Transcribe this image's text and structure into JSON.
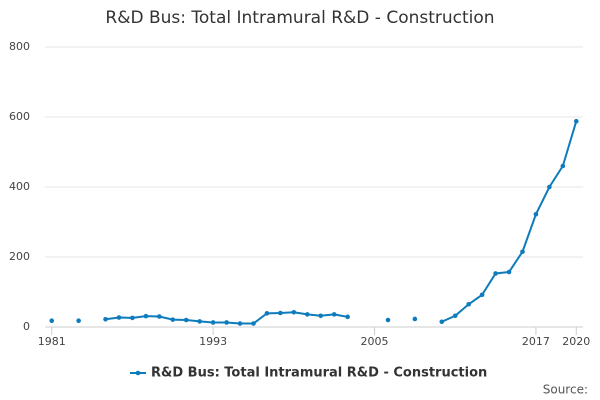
{
  "chart_data": {
    "type": "line",
    "title": "R&D Bus: Total Intramural R&D - Construction",
    "x": [
      1981,
      1982,
      1983,
      1984,
      1985,
      1986,
      1987,
      1988,
      1989,
      1990,
      1991,
      1992,
      1993,
      1994,
      1995,
      1996,
      1997,
      1998,
      1999,
      2000,
      2001,
      2002,
      2003,
      2004,
      2005,
      2006,
      2007,
      2008,
      2009,
      2010,
      2011,
      2012,
      2013,
      2014,
      2015,
      2016,
      2017,
      2018,
      2019,
      2020
    ],
    "series": [
      {
        "name": "R&D Bus: Total Intramural R&D - Construction",
        "color": "#0e7bbd",
        "values": [
          18,
          null,
          18,
          null,
          22,
          27,
          26,
          31,
          30,
          21,
          20,
          16,
          13,
          13,
          10,
          10,
          39,
          40,
          42,
          36,
          32,
          36,
          29,
          null,
          null,
          20,
          null,
          23,
          null,
          15,
          32,
          65,
          92,
          153,
          157,
          215,
          322,
          400,
          460,
          588
        ]
      }
    ],
    "xlim": [
      1980.5,
      2020.5
    ],
    "xticks": [
      1981,
      1993,
      2005,
      2017,
      2020
    ],
    "ylim": [
      0,
      800
    ],
    "yticks": [
      0,
      200,
      400,
      600,
      800
    ],
    "grid": true,
    "source": "Source:"
  }
}
